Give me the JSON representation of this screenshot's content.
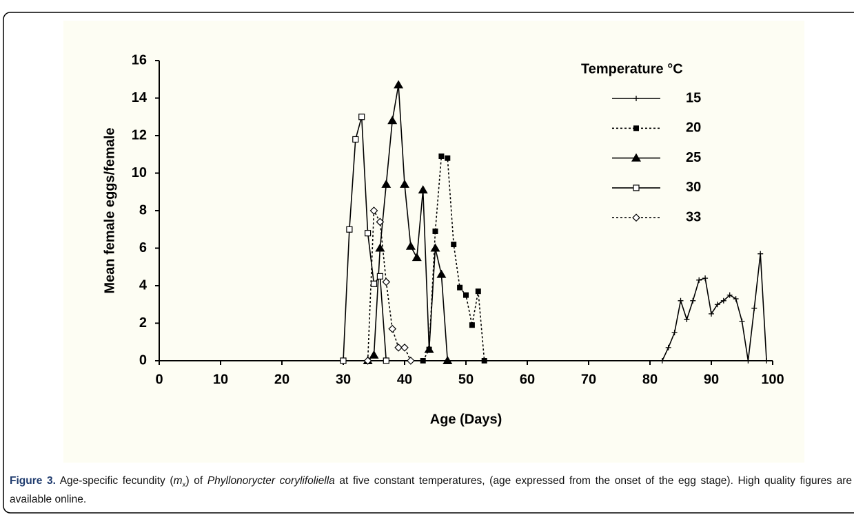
{
  "chart_data": {
    "type": "line",
    "xlabel": "Age (Days)",
    "ylabel": "Mean female eggs/female",
    "legend_title": "Temperature °C",
    "legend": "top-right",
    "xlim": [
      0,
      100
    ],
    "ylim": [
      0,
      16
    ],
    "xticks": [
      0,
      10,
      20,
      30,
      40,
      50,
      60,
      70,
      80,
      90,
      100
    ],
    "yticks": [
      0,
      2,
      4,
      6,
      8,
      10,
      12,
      14,
      16
    ],
    "grid": false,
    "series": [
      {
        "name": "15",
        "color": "#000000",
        "marker": "plus",
        "line_style": "solid",
        "x": [
          82,
          83,
          84,
          85,
          86,
          87,
          88,
          89,
          90,
          91,
          92,
          93,
          94,
          95,
          96,
          97,
          98,
          99
        ],
        "values": [
          0,
          0.7,
          1.5,
          3.2,
          2.2,
          3.2,
          4.3,
          4.4,
          2.5,
          3.0,
          3.2,
          3.5,
          3.3,
          2.1,
          0,
          2.8,
          5.7,
          0
        ]
      },
      {
        "name": "20",
        "color": "#000000",
        "marker": "square",
        "line_style": "dotted",
        "x": [
          43,
          44,
          45,
          46,
          47,
          48,
          49,
          50,
          51,
          52,
          53
        ],
        "values": [
          0,
          0.6,
          6.9,
          10.9,
          10.8,
          6.2,
          3.9,
          3.5,
          1.9,
          3.7,
          0
        ]
      },
      {
        "name": "25",
        "color": "#000000",
        "marker": "triangle",
        "line_style": "solid",
        "x": [
          34,
          35,
          36,
          37,
          38,
          39,
          40,
          41,
          42,
          43,
          44,
          45,
          46,
          47
        ],
        "values": [
          0,
          0.3,
          6.0,
          9.4,
          12.8,
          14.7,
          9.4,
          6.1,
          5.5,
          9.1,
          0.6,
          6.0,
          4.6,
          0
        ]
      },
      {
        "name": "30",
        "color": "#000000",
        "marker": "open-square",
        "line_style": "solid",
        "x": [
          30,
          31,
          32,
          33,
          34,
          35,
          36,
          37
        ],
        "values": [
          0,
          7.0,
          11.8,
          13.0,
          6.8,
          4.1,
          4.5,
          0
        ]
      },
      {
        "name": "33",
        "color": "#000000",
        "marker": "open-diamond",
        "line_style": "dotted",
        "x": [
          34,
          35,
          36,
          37,
          38,
          39,
          40,
          41
        ],
        "values": [
          0,
          8.0,
          7.4,
          4.2,
          1.7,
          0.7,
          0.7,
          0
        ]
      }
    ]
  },
  "caption": {
    "label": "Figure 3.",
    "text_1": "Age-specific fecundity (",
    "symbol": "m",
    "subscript": "x",
    "text_2": ") of ",
    "species": "Phyllonorycter corylifoliella",
    "text_3": " at five constant temperatures, (age expressed from the onset of the egg stage).  High quality figures are available online."
  }
}
